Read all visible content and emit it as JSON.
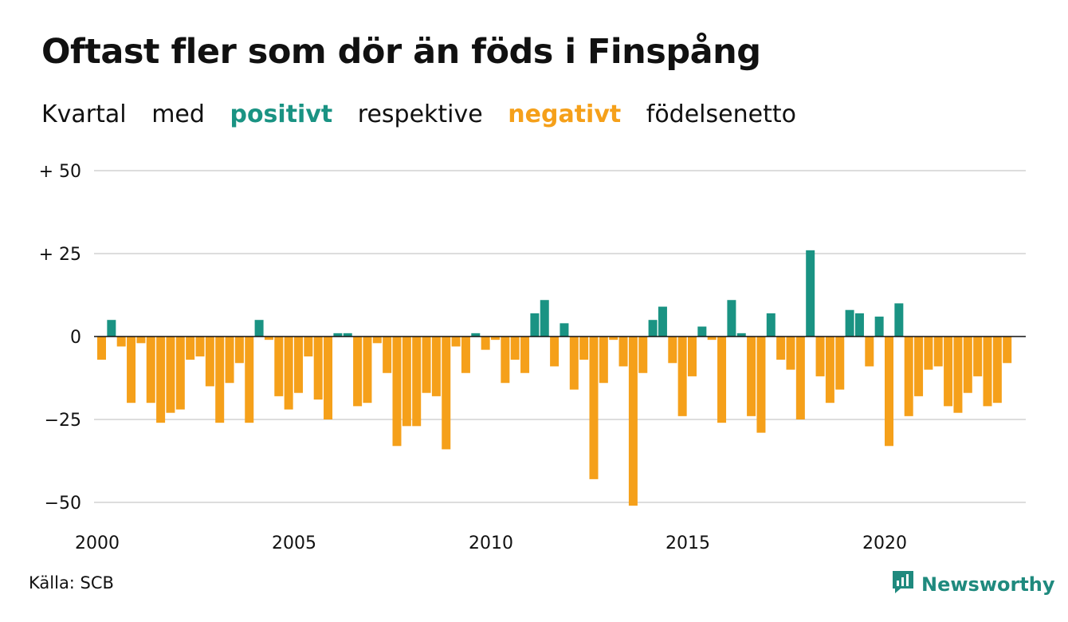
{
  "title": "Oftast fler som dör än föds i Finspång",
  "subtitle": {
    "w1": "Kvartal",
    "w2": "med",
    "positive": "positivt",
    "w3": "respektive",
    "negative": "negativt",
    "w4": "födelsenetto"
  },
  "source": "Källa: SCB",
  "brand": {
    "name": "Newsworthy",
    "icon": "newsworthy-logo-icon"
  },
  "colors": {
    "positive": "#1a9383",
    "negative": "#f5a01a",
    "grid": "#dddddd",
    "text": "#111111"
  },
  "chart_data": {
    "type": "bar",
    "title": "Oftast fler som dör än föds i Finspång",
    "xlabel": "",
    "ylabel": "",
    "ylim": [
      -55,
      50
    ],
    "grid": true,
    "y_ticks": [
      {
        "value": 50,
        "label": "+ 50"
      },
      {
        "value": 25,
        "label": "+ 25"
      },
      {
        "value": 0,
        "label": "0"
      },
      {
        "value": -25,
        "label": "−25"
      },
      {
        "value": -50,
        "label": "−50"
      }
    ],
    "x_ticks": [
      {
        "value": 2000,
        "label": "2000"
      },
      {
        "value": 2005,
        "label": "2005"
      },
      {
        "value": 2010,
        "label": "2010"
      },
      {
        "value": 2015,
        "label": "2015"
      },
      {
        "value": 2020,
        "label": "2020"
      }
    ],
    "start_year": 2000,
    "periods": "quarters",
    "values": [
      -7,
      5,
      -3,
      -20,
      -2,
      -20,
      -26,
      -23,
      -22,
      -7,
      -6,
      -15,
      -26,
      -14,
      -8,
      -26,
      5,
      -1,
      -18,
      -22,
      -17,
      -6,
      -19,
      -25,
      1,
      1,
      -21,
      -20,
      -2,
      -11,
      -33,
      -27,
      -27,
      -17,
      -18,
      -34,
      -3,
      -11,
      1,
      -4,
      -1,
      -14,
      -7,
      -11,
      7,
      11,
      -9,
      4,
      -16,
      -7,
      -43,
      -14,
      -1,
      -9,
      -51,
      -11,
      5,
      9,
      -8,
      -24,
      -12,
      3,
      -1,
      -26,
      11,
      1,
      -24,
      -29,
      7,
      -7,
      -10,
      -25,
      26,
      -12,
      -20,
      -16,
      8,
      7,
      -9,
      6,
      -33,
      10,
      -24,
      -18,
      -10,
      -9,
      -21,
      -23,
      -17,
      -12,
      -21,
      -20,
      -8
    ]
  }
}
